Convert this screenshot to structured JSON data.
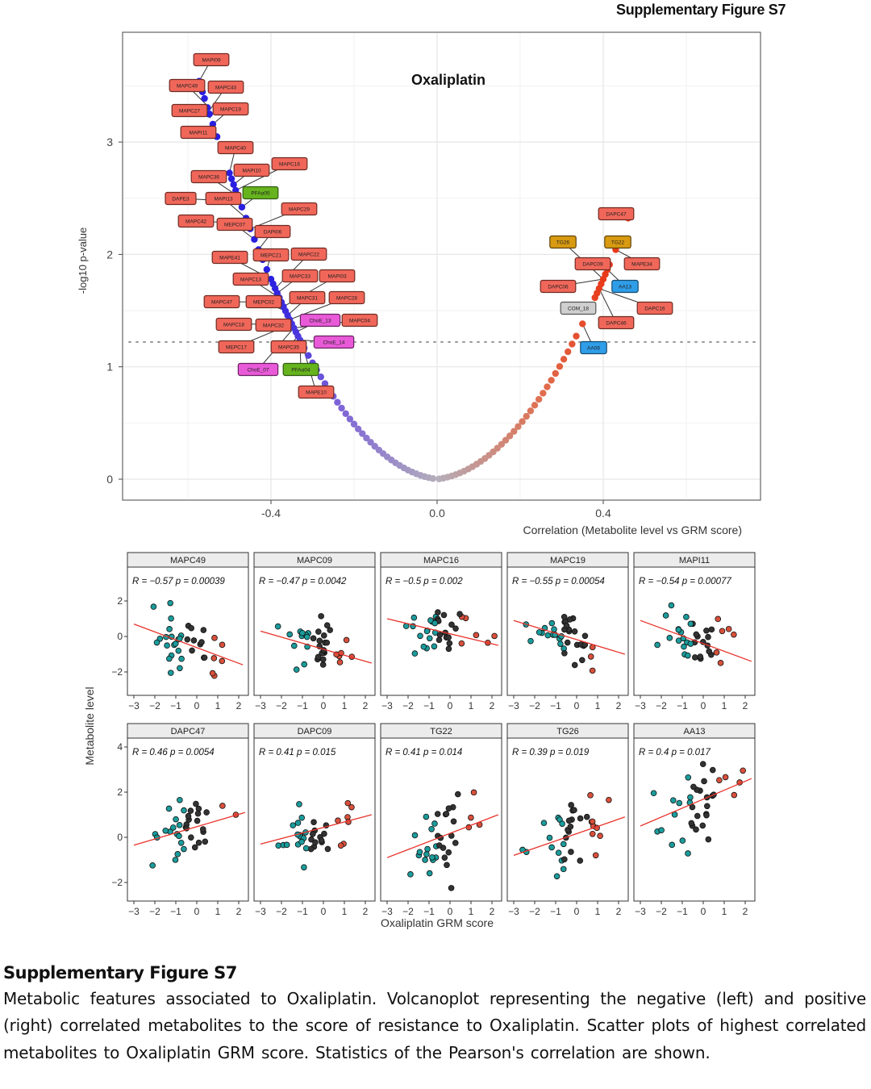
{
  "header": {
    "figure_label": "Supplementary Figure S7"
  },
  "caption": {
    "title": "Supplementary Figure S7",
    "body": "Metabolic features associated to Oxaliplatin. Volcanoplot representing the negative (left) and positive (right) correlated metabolites to the score of resistance to Oxaliplatin. Scatter plots of highest correlated metabolites to Oxaliplatin GRM score. Statistics of the Pearson's correlation are shown."
  },
  "chart_data": [
    {
      "type": "scatter",
      "title": "Oxaliplatin",
      "xlabel": "Correlation (Metabolite level vs GRM score)",
      "ylabel": "-log10 p-value",
      "xlim": [
        -0.76,
        0.78
      ],
      "ylim": [
        -0.19,
        3.98
      ],
      "xticks": [
        "-0.4",
        "0.0",
        "0.4"
      ],
      "xtick_values": [
        -0.4,
        0.0,
        0.4
      ],
      "yticks": [
        "0",
        "1",
        "2",
        "3"
      ],
      "ytick_values": [
        0,
        1,
        2,
        3
      ],
      "significance_threshold": 1.22,
      "grid": true,
      "colors": {
        "negative": "#2a1ee0",
        "neutral": "#b4aebb",
        "positive": "#e83a1a"
      },
      "negative_r": [
        -0.573,
        -0.565,
        -0.56,
        -0.553,
        -0.548,
        -0.54,
        -0.53,
        -0.52,
        -0.5,
        -0.495,
        -0.49,
        -0.485,
        -0.48,
        -0.47,
        -0.46,
        -0.455,
        -0.45,
        -0.44,
        -0.43,
        -0.42,
        -0.41,
        -0.4,
        -0.395,
        -0.39,
        -0.385,
        -0.38,
        -0.375,
        -0.37,
        -0.365,
        -0.36,
        -0.355,
        -0.35,
        -0.345,
        -0.34,
        -0.335,
        -0.33,
        -0.325,
        -0.32,
        -0.31,
        -0.3,
        -0.29,
        -0.28,
        -0.27,
        -0.26,
        -0.25,
        -0.24,
        -0.23,
        -0.22,
        -0.21,
        -0.2,
        -0.19,
        -0.18,
        -0.17,
        -0.16,
        -0.15,
        -0.14,
        -0.13,
        -0.12,
        -0.11,
        -0.1,
        -0.09,
        -0.08,
        -0.07,
        -0.06,
        -0.05,
        -0.04,
        -0.03,
        -0.02,
        -0.01
      ],
      "positive_r": [
        0.005,
        0.015,
        0.025,
        0.035,
        0.045,
        0.055,
        0.065,
        0.075,
        0.085,
        0.095,
        0.105,
        0.115,
        0.125,
        0.135,
        0.145,
        0.155,
        0.165,
        0.175,
        0.185,
        0.195,
        0.205,
        0.215,
        0.225,
        0.235,
        0.245,
        0.255,
        0.265,
        0.275,
        0.285,
        0.295,
        0.305,
        0.315,
        0.325,
        0.335,
        0.35,
        0.37,
        0.38,
        0.385,
        0.39,
        0.395,
        0.4,
        0.405,
        0.41,
        0.415,
        0.43,
        0.46
      ],
      "labels": [
        {
          "text": "MAPI09",
          "class": "red",
          "r": -0.573
        },
        {
          "text": "MAPC49",
          "class": "red",
          "r": -0.555
        },
        {
          "text": "MAPC43",
          "class": "red",
          "r": -0.55
        },
        {
          "text": "MAPC27",
          "class": "red",
          "r": -0.545
        },
        {
          "text": "MAPC19",
          "class": "red",
          "r": -0.54
        },
        {
          "text": "MAPI11",
          "class": "red",
          "r": -0.53
        },
        {
          "text": "MAPC40",
          "class": "red",
          "r": -0.5
        },
        {
          "text": "MAPC16",
          "class": "red",
          "r": -0.485
        },
        {
          "text": "MAPI10",
          "class": "red",
          "r": -0.49
        },
        {
          "text": "MAPC36",
          "class": "red",
          "r": -0.48
        },
        {
          "text": "PFAα05",
          "class": "green",
          "r": -0.47
        },
        {
          "text": "DAPE3",
          "class": "red",
          "r": -0.475
        },
        {
          "text": "MAPI13",
          "class": "red",
          "r": -0.46
        },
        {
          "text": "MAPC29",
          "class": "red",
          "r": -0.45
        },
        {
          "text": "MAPC42",
          "class": "red",
          "r": -0.455
        },
        {
          "text": "MEPC07",
          "class": "red",
          "r": -0.44
        },
        {
          "text": "DAPI06",
          "class": "red",
          "r": -0.43
        },
        {
          "text": "MAPE41",
          "class": "red",
          "r": -0.4
        },
        {
          "text": "MEPC21",
          "class": "red",
          "r": -0.41
        },
        {
          "text": "MAPC22",
          "class": "red",
          "r": -0.39
        },
        {
          "text": "MAPC13",
          "class": "red",
          "r": -0.38
        },
        {
          "text": "MAPC33",
          "class": "red",
          "r": -0.385
        },
        {
          "text": "MAPI03",
          "class": "red",
          "r": -0.37
        },
        {
          "text": "MAPC47",
          "class": "red",
          "r": -0.375
        },
        {
          "text": "MEPC02",
          "class": "red",
          "r": -0.365
        },
        {
          "text": "MAPC31",
          "class": "red",
          "r": -0.36
        },
        {
          "text": "MAPC28",
          "class": "red",
          "r": -0.355
        },
        {
          "text": "MAPC18",
          "class": "red",
          "r": -0.35
        },
        {
          "text": "MAPC32",
          "class": "red",
          "r": -0.345
        },
        {
          "text": "ChoE_13",
          "class": "pink",
          "r": -0.34
        },
        {
          "text": "MAPC04",
          "class": "red",
          "r": -0.345
        },
        {
          "text": "MEPC17",
          "class": "red",
          "r": -0.35
        },
        {
          "text": "MAPC35",
          "class": "red",
          "r": -0.335
        },
        {
          "text": "ChoE_14",
          "class": "pink",
          "r": -0.33
        },
        {
          "text": "ChoE_07",
          "class": "pink",
          "r": -0.345
        },
        {
          "text": "PFAα04",
          "class": "green",
          "r": -0.33
        },
        {
          "text": "MAPE10",
          "class": "red",
          "r": -0.325
        },
        {
          "text": "DAPC47",
          "class": "red",
          "r": 0.46
        },
        {
          "text": "TG26",
          "class": "gold",
          "r": 0.4
        },
        {
          "text": "TG22",
          "class": "gold",
          "r": 0.43
        },
        {
          "text": "DAPC09",
          "class": "red",
          "r": 0.41
        },
        {
          "text": "MAPE34",
          "class": "red",
          "r": 0.43
        },
        {
          "text": "DAPC06",
          "class": "red",
          "r": 0.4
        },
        {
          "text": "AA13",
          "class": "blue",
          "r": 0.41
        },
        {
          "text": "COM_18",
          "class": "gray",
          "r": null
        },
        {
          "text": "DAPC16",
          "class": "red",
          "r": 0.39
        },
        {
          "text": "DAPC46",
          "class": "red",
          "r": 0.39
        },
        {
          "text": "AA06",
          "class": "blue",
          "r": 0.35
        }
      ]
    },
    {
      "type": "scatter",
      "xlabel": "Oxaliplatin GRM score",
      "ylabel": "Metabolite level",
      "xticks": [
        "−3",
        "−2",
        "−1",
        "0",
        "1",
        "2"
      ],
      "xtick_values": [
        -3,
        -2,
        -1,
        0,
        1,
        2
      ],
      "row_yticks": [
        {
          "labels": [
            "−2",
            "0",
            "2"
          ],
          "values": [
            -2,
            0,
            2
          ]
        },
        {
          "labels": [
            "−2",
            "0",
            "2",
            "4"
          ],
          "values": [
            -2,
            0,
            2,
            4
          ]
        }
      ],
      "point_colors": {
        "low": "#1b9c9c",
        "mid": "#333333",
        "high": "#d9503c"
      },
      "fit_color": "#e8322a",
      "panels": [
        {
          "title": "MAPC49",
          "stats": "R = −0.57 p = 0.00039",
          "R": -0.57,
          "p": 0.00039,
          "fit": [
            -3,
            0.7,
            2.2,
            -1.6
          ],
          "sd": 0.7
        },
        {
          "title": "MAPC09",
          "stats": "R = −0.47 p = 0.0042",
          "R": -0.47,
          "p": 0.0042,
          "fit": [
            -3,
            0.3,
            2.3,
            -1.5
          ],
          "sd": 0.75
        },
        {
          "title": "MAPC16",
          "stats": "R = −0.5 p = 0.002",
          "R": -0.5,
          "p": 0.002,
          "fit": [
            -3,
            1.0,
            2.3,
            -0.5
          ],
          "sd": 0.6
        },
        {
          "title": "MAPC19",
          "stats": "R = −0.55 p = 0.00054",
          "R": -0.55,
          "p": 0.00054,
          "fit": [
            -3,
            0.9,
            2.3,
            -1.0
          ],
          "sd": 0.6
        },
        {
          "title": "MAPI11",
          "stats": "R = −0.54 p = 0.00077",
          "R": -0.54,
          "p": 0.00077,
          "fit": [
            -3,
            0.9,
            2.3,
            -1.4
          ],
          "sd": 0.7
        },
        {
          "title": "DAPC47",
          "stats": "R = 0.46 p = 0.0054",
          "R": 0.46,
          "p": 0.0054,
          "fit": [
            -3,
            -0.35,
            2.3,
            1.1
          ],
          "sd": 0.65
        },
        {
          "title": "DAPC09",
          "stats": "R = 0.41 p = 0.015",
          "R": 0.41,
          "p": 0.015,
          "fit": [
            -3,
            -0.3,
            2.3,
            1.0
          ],
          "sd": 0.7
        },
        {
          "title": "TG22",
          "stats": "R = 0.41 p = 0.014",
          "R": 0.41,
          "p": 0.014,
          "fit": [
            -3,
            -0.9,
            2.3,
            1.0
          ],
          "sd": 0.9
        },
        {
          "title": "TG26",
          "stats": "R = 0.39 p = 0.019",
          "R": 0.39,
          "p": 0.019,
          "fit": [
            -3,
            -0.8,
            2.3,
            0.9
          ],
          "sd": 0.8
        },
        {
          "title": "AA13",
          "stats": "R = 0.4 p = 0.017",
          "R": 0.4,
          "p": 0.017,
          "fit": [
            -3,
            0.5,
            2.3,
            2.6
          ],
          "sd": 0.9
        }
      ]
    }
  ]
}
